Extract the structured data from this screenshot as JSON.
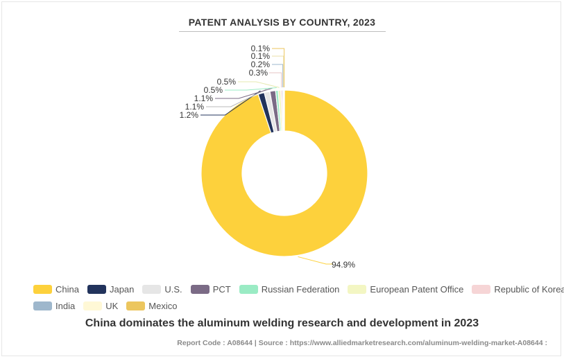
{
  "chart_data": {
    "type": "pie",
    "variant": "donut",
    "title": "PATENT ANALYSIS BY COUNTRY, 2023",
    "categories": [
      "China",
      "Japan",
      "U.S.",
      "PCT",
      "Russian Federation",
      "European Patent Office",
      "Republic of Korea",
      "India",
      "UK",
      "Mexico"
    ],
    "values": [
      94.9,
      1.2,
      1.1,
      1.1,
      0.5,
      0.5,
      0.3,
      0.2,
      0.1,
      0.1
    ],
    "labels": [
      "94.9%",
      "1.2%",
      "1.1%",
      "1.1%",
      "0.5%",
      "0.5%",
      "0.3%",
      "0.2%",
      "0.1%",
      "0.1%"
    ],
    "colors": [
      "#FDD13C",
      "#22335C",
      "#E6E6E6",
      "#7B6B86",
      "#9AEBC4",
      "#F3F6C3",
      "#F6D5D6",
      "#9EB7CC",
      "#FFF8D6",
      "#ECC65E"
    ],
    "legend_position": "bottom"
  },
  "subtitle": "China dominates the aluminum welding research and development in 2023",
  "footer": "Report Code : A08644  |  Source : https://www.alliedmarketresearch.com/aluminum-welding-market-A08644 :"
}
